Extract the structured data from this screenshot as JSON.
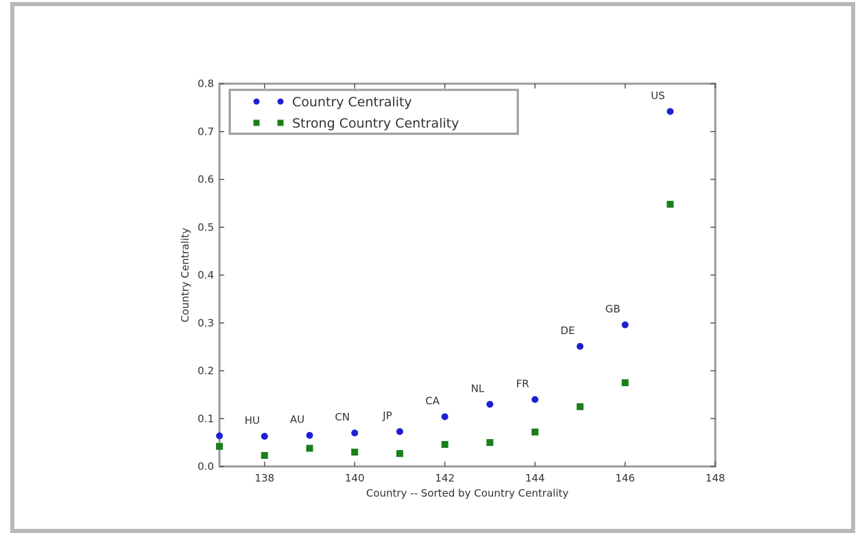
{
  "chart_data": {
    "type": "scatter",
    "title": "",
    "xlabel": "Country -- Sorted by Country Centrality",
    "ylabel": "Country Centrality",
    "xlim": [
      137,
      148
    ],
    "ylim": [
      0.0,
      0.8
    ],
    "xticks": [
      138,
      140,
      142,
      144,
      146,
      148
    ],
    "xtick_labels": [
      "138",
      "140",
      "142",
      "144",
      "146",
      "148"
    ],
    "yticks": [
      0.0,
      0.1,
      0.2,
      0.3,
      0.4,
      0.5,
      0.6,
      0.7,
      0.8
    ],
    "ytick_labels": [
      "0.0",
      "0.1",
      "0.2",
      "0.3",
      "0.4",
      "0.5",
      "0.6",
      "0.7",
      "0.8"
    ],
    "grid": false,
    "legend": "top-left",
    "series": [
      {
        "name": "Country Centrality",
        "color": "#1f1fd6",
        "marker": "circle",
        "points": [
          {
            "x": 137,
            "y": 0.064
          },
          {
            "x": 138,
            "y": 0.063,
            "label": "HU"
          },
          {
            "x": 139,
            "y": 0.065,
            "label": "AU"
          },
          {
            "x": 140,
            "y": 0.07,
            "label": "CN"
          },
          {
            "x": 141,
            "y": 0.073,
            "label": "JP"
          },
          {
            "x": 142,
            "y": 0.104,
            "label": "CA"
          },
          {
            "x": 143,
            "y": 0.13,
            "label": "NL"
          },
          {
            "x": 144,
            "y": 0.14,
            "label": "FR"
          },
          {
            "x": 145,
            "y": 0.251,
            "label": "DE"
          },
          {
            "x": 146,
            "y": 0.296,
            "label": "GB"
          },
          {
            "x": 147,
            "y": 0.742,
            "label": "US"
          }
        ]
      },
      {
        "name": "Strong Country Centrality",
        "color": "#1a7f1a",
        "marker": "square",
        "points": [
          {
            "x": 137,
            "y": 0.042
          },
          {
            "x": 138,
            "y": 0.023
          },
          {
            "x": 139,
            "y": 0.038
          },
          {
            "x": 140,
            "y": 0.03
          },
          {
            "x": 141,
            "y": 0.027
          },
          {
            "x": 142,
            "y": 0.046
          },
          {
            "x": 143,
            "y": 0.05
          },
          {
            "x": 144,
            "y": 0.072
          },
          {
            "x": 145,
            "y": 0.125
          },
          {
            "x": 146,
            "y": 0.175
          },
          {
            "x": 147,
            "y": 0.548
          }
        ]
      }
    ]
  }
}
